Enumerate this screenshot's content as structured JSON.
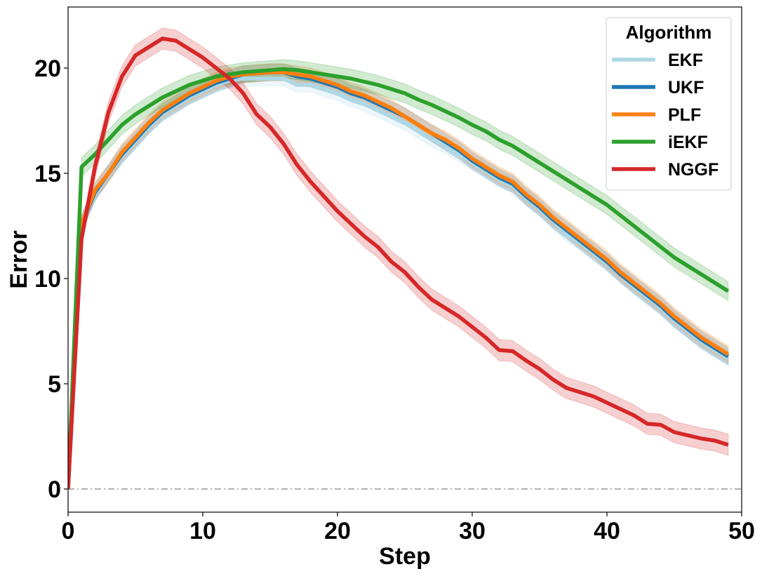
{
  "chart_data": {
    "type": "line",
    "xlabel": "Step",
    "ylabel": "Error",
    "xlim": [
      0,
      50
    ],
    "ylim": [
      -1.1,
      22.9
    ],
    "xticks": [
      0,
      10,
      20,
      30,
      40,
      50
    ],
    "yticks": [
      0,
      5,
      10,
      15,
      20
    ],
    "grid": false,
    "reference_line": {
      "y": 0,
      "color": "#999999",
      "style": "dash-dot"
    },
    "legend": {
      "title": "Algorithm",
      "placement": "top-right"
    },
    "x": [
      0,
      1,
      2,
      3,
      4,
      5,
      6,
      7,
      8,
      9,
      10,
      11,
      12,
      13,
      14,
      15,
      16,
      17,
      18,
      19,
      20,
      21,
      22,
      23,
      24,
      25,
      26,
      27,
      28,
      29,
      30,
      31,
      32,
      33,
      34,
      35,
      36,
      37,
      38,
      39,
      40,
      41,
      42,
      43,
      44,
      45,
      46,
      47,
      48,
      49
    ],
    "series": [
      {
        "name": "EKF",
        "color": "#add8e6",
        "values": [
          0,
          12.6,
          14.0,
          15.0,
          15.8,
          16.5,
          17.2,
          17.8,
          18.2,
          18.6,
          18.9,
          19.2,
          19.4,
          19.5,
          19.5,
          19.5,
          19.5,
          19.2,
          19.2,
          19.0,
          18.8,
          18.5,
          18.3,
          18.0,
          17.7,
          17.4,
          17.0,
          16.6,
          16.3,
          15.9,
          15.5,
          15.1,
          14.7,
          14.4,
          13.8,
          13.3,
          12.7,
          12.1,
          11.7,
          11.2,
          10.7,
          10.2,
          9.6,
          9.1,
          8.6,
          8.0,
          7.5,
          7.0,
          6.6,
          6.2
        ],
        "band": 0.35
      },
      {
        "name": "UKF",
        "color": "#1f77b4",
        "values": [
          0,
          12.6,
          14.1,
          15.0,
          15.9,
          16.6,
          17.3,
          17.9,
          18.3,
          18.7,
          19.0,
          19.3,
          19.5,
          19.7,
          19.75,
          19.8,
          19.8,
          19.6,
          19.5,
          19.3,
          19.1,
          18.8,
          18.6,
          18.3,
          18.0,
          17.7,
          17.3,
          16.9,
          16.5,
          16.1,
          15.6,
          15.2,
          14.8,
          14.5,
          13.9,
          13.4,
          12.8,
          12.3,
          11.8,
          11.3,
          10.8,
          10.2,
          9.7,
          9.2,
          8.7,
          8.1,
          7.6,
          7.1,
          6.7,
          6.3
        ],
        "band": 0.4
      },
      {
        "name": "PLF",
        "color": "#ff7f0e",
        "values": [
          0,
          12.6,
          14.2,
          15.0,
          16.0,
          16.7,
          17.4,
          18.0,
          18.4,
          18.8,
          19.1,
          19.4,
          19.6,
          19.7,
          19.75,
          19.8,
          19.8,
          19.7,
          19.6,
          19.4,
          19.2,
          18.9,
          18.7,
          18.4,
          18.1,
          17.7,
          17.3,
          16.9,
          16.6,
          16.2,
          15.7,
          15.3,
          14.9,
          14.6,
          14.0,
          13.5,
          12.9,
          12.4,
          11.9,
          11.4,
          10.9,
          10.3,
          9.8,
          9.3,
          8.8,
          8.2,
          7.7,
          7.2,
          6.8,
          6.4
        ],
        "band": 0.4
      },
      {
        "name": "iEKF",
        "color": "#2ca02c",
        "values": [
          0,
          15.3,
          15.9,
          16.6,
          17.3,
          17.8,
          18.2,
          18.6,
          18.9,
          19.2,
          19.4,
          19.6,
          19.7,
          19.8,
          19.85,
          19.9,
          19.95,
          19.9,
          19.8,
          19.7,
          19.6,
          19.5,
          19.35,
          19.2,
          19.0,
          18.8,
          18.5,
          18.25,
          17.95,
          17.65,
          17.3,
          17.0,
          16.6,
          16.3,
          15.9,
          15.5,
          15.1,
          14.7,
          14.3,
          13.9,
          13.5,
          13.0,
          12.5,
          12.0,
          11.5,
          11.0,
          10.6,
          10.2,
          9.8,
          9.4
        ],
        "band": 0.45
      },
      {
        "name": "NGGF",
        "color": "#d62728",
        "values": [
          0,
          11.9,
          15.3,
          17.9,
          19.6,
          20.6,
          21.0,
          21.4,
          21.3,
          20.9,
          20.5,
          20.0,
          19.5,
          18.8,
          17.8,
          17.2,
          16.4,
          15.4,
          14.6,
          13.9,
          13.2,
          12.6,
          12.0,
          11.5,
          10.8,
          10.3,
          9.6,
          9.0,
          8.6,
          8.2,
          7.7,
          7.2,
          6.6,
          6.55,
          6.1,
          5.7,
          5.2,
          4.8,
          4.6,
          4.4,
          4.1,
          3.8,
          3.5,
          3.1,
          3.05,
          2.7,
          2.55,
          2.4,
          2.3,
          2.1
        ],
        "band": 0.5
      }
    ]
  }
}
